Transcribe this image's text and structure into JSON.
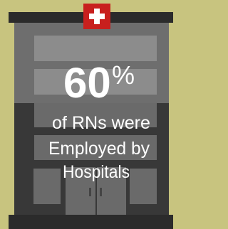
{
  "stat": {
    "value": 60,
    "unit": "%"
  },
  "caption": [
    "of RNs were",
    "Employed by",
    "Hospitals"
  ]
}
